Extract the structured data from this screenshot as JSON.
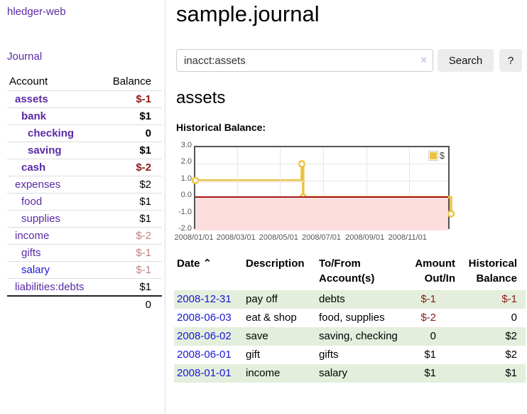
{
  "sidebar": {
    "brand": "hledger-web",
    "journal_link": "Journal",
    "accounts": {
      "headers": [
        "Account",
        "Balance"
      ],
      "rows": [
        {
          "name": "assets",
          "balance": "$-1",
          "depth": 1,
          "current": true,
          "link_style": "purple"
        },
        {
          "name": "bank",
          "balance": "$1",
          "depth": 2,
          "current": true,
          "link_style": "purple"
        },
        {
          "name": "checking",
          "balance": "0",
          "depth": 3,
          "current": true,
          "link_style": "purple"
        },
        {
          "name": "saving",
          "balance": "$1",
          "depth": 3,
          "current": true,
          "link_style": "purple"
        },
        {
          "name": "cash",
          "balance": "$-2",
          "depth": 2,
          "current": true,
          "link_style": "purple"
        },
        {
          "name": "expenses",
          "balance": "$2",
          "depth": 1,
          "current": false,
          "link_style": "purple"
        },
        {
          "name": "food",
          "balance": "$1",
          "depth": 2,
          "current": false,
          "link_style": "purple"
        },
        {
          "name": "supplies",
          "balance": "$1",
          "depth": 2,
          "current": false,
          "link_style": "purple"
        },
        {
          "name": "income",
          "balance": "$-2",
          "depth": 1,
          "current": false,
          "link_style": "purple"
        },
        {
          "name": "gifts",
          "balance": "$-1",
          "depth": 2,
          "current": false,
          "link_style": "purple"
        },
        {
          "name": "salary",
          "balance": "$-1",
          "depth": 2,
          "current": false,
          "link_style": "blue"
        },
        {
          "name": "liabilities:debts",
          "balance": "$1",
          "depth": 1,
          "current": false,
          "link_style": "purple"
        }
      ],
      "total": "0"
    }
  },
  "main": {
    "title": "sample.journal",
    "search": {
      "value": "inacct:assets",
      "clear_icon": "×",
      "search_button": "Search",
      "help_button": "?"
    },
    "account_heading": "assets",
    "chart_label": "Historical Balance:",
    "register": {
      "headers": [
        "Date",
        "Description",
        "To/From Account(s)",
        "Amount Out/In",
        "Historical Balance"
      ],
      "sort_caret": "⌃",
      "rows": [
        {
          "date": "2008-12-31",
          "description": "pay off",
          "accounts": "debts",
          "amount": "$-1",
          "balance": "$-1"
        },
        {
          "date": "2008-06-03",
          "description": "eat & shop",
          "accounts": "food, supplies",
          "amount": "$-2",
          "balance": "0"
        },
        {
          "date": "2008-06-02",
          "description": "save",
          "accounts": "saving, checking",
          "amount": "0",
          "balance": "$2"
        },
        {
          "date": "2008-06-01",
          "description": "gift",
          "accounts": "gifts",
          "amount": "$1",
          "balance": "$2"
        },
        {
          "date": "2008-01-01",
          "description": "income",
          "accounts": "salary",
          "amount": "$1",
          "balance": "$1"
        }
      ]
    }
  },
  "chart_data": {
    "type": "line",
    "step": true,
    "title": "Historical Balance:",
    "series": [
      {
        "name": "$",
        "points": [
          {
            "x": "2008/01/01",
            "y": 1
          },
          {
            "x": "2008/06/01",
            "y": 2
          },
          {
            "x": "2008/06/03",
            "y": 0
          },
          {
            "x": "2008/12/31",
            "y": -1
          }
        ]
      }
    ],
    "xlim": [
      "2008/01/01",
      "2008/12/31"
    ],
    "ylim": [
      -2,
      3
    ],
    "yticks": [
      3,
      2,
      1,
      0,
      -1,
      -2
    ],
    "ytick_labels": [
      "3.0",
      "2.0",
      "1.0",
      "0.0",
      "-1.0",
      "-2.0"
    ],
    "xtick_labels": [
      "2008/01/01",
      "2008/03/01",
      "2008/05/01",
      "2008/07/01",
      "2008/09/01",
      "2008/11/01"
    ],
    "legend_position": "top-right",
    "grid": true,
    "series_color": "#edc240",
    "negative_region_color": "#fcdede",
    "zero_line_color": "#a21616"
  }
}
